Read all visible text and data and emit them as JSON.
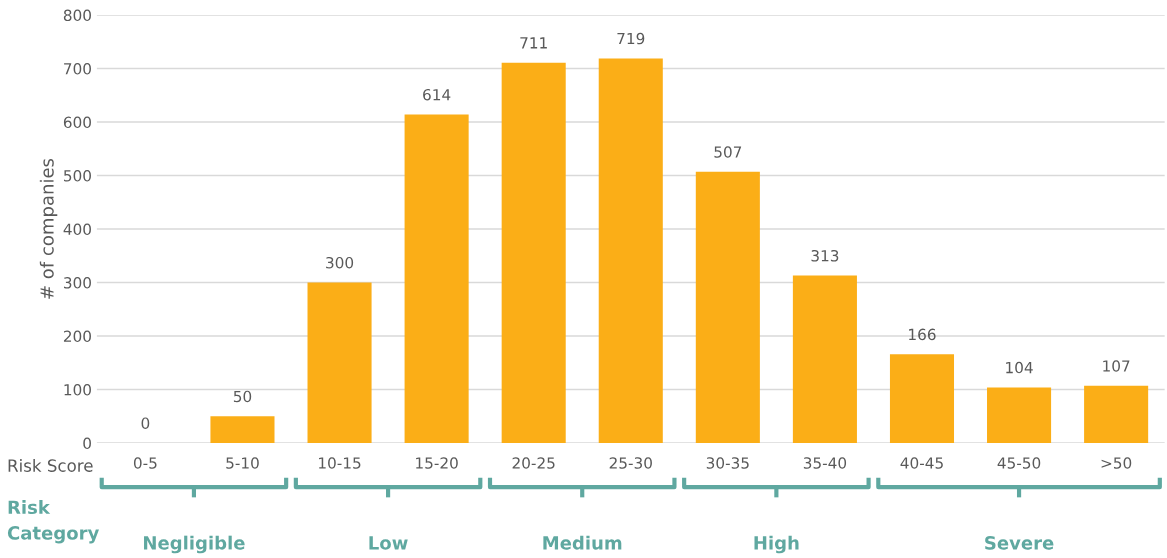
{
  "chart_data": {
    "type": "bar",
    "ylabel": "# of companies",
    "categories": [
      "0-5",
      "5-10",
      "10-15",
      "15-20",
      "20-25",
      "25-30",
      "30-35",
      "35-40",
      "40-45",
      "45-50",
      ">50"
    ],
    "values": [
      0,
      50,
      300,
      614,
      711,
      719,
      507,
      313,
      166,
      104,
      107
    ],
    "color": "#fbae17",
    "ylim": [
      0,
      800
    ],
    "yticks": [
      0,
      100,
      200,
      300,
      400,
      500,
      600,
      700,
      800
    ],
    "grid": "y",
    "data_labels": true,
    "legend": false,
    "annotations": [
      "Risk Score",
      "Risk Category",
      "Negligible",
      "Low",
      "Medium",
      "High",
      "Severe"
    ]
  }
}
